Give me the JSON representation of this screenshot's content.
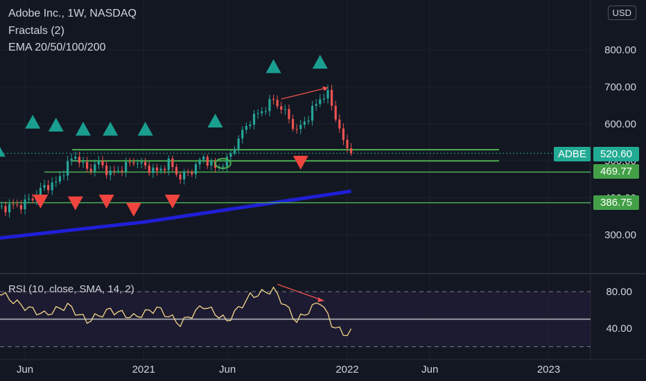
{
  "header": {
    "title": "Adobe Inc., 1W, NASDAQ",
    "indicator1": "Fractals (2)",
    "indicator2": "EMA 20/50/100/200"
  },
  "currency": "USD",
  "rsi_label": "RSI (10, close, SMA, 14, 2)",
  "price_tags": {
    "ticker": "ADBE",
    "last": "520.60",
    "support1": "469.77",
    "support2": "386.75"
  },
  "colors": {
    "background": "#131722",
    "up": "#26a69a",
    "down": "#ef5350",
    "ema": "#1f1fd6",
    "level": "#4caf50",
    "rsi": "#f5d78a",
    "divergence": "#ef5350"
  },
  "chart_data": [
    {
      "type": "candlestick",
      "title": "Adobe Inc., 1W, NASDAQ",
      "x_ticks": [
        "Jun",
        "2021",
        "Jun",
        "2022",
        "Jun",
        "2023"
      ],
      "y_ticks": [
        "300.00",
        "400.00",
        "500.00",
        "600.00",
        "700.00",
        "800.00"
      ],
      "ylim": [
        200,
        880
      ],
      "close_path": [
        [
          "2020-05-25",
          380
        ],
        [
          "2020-06-15",
          400
        ],
        [
          "2020-07-06",
          430
        ],
        [
          "2020-07-27",
          440
        ],
        [
          "2020-08-17",
          490
        ],
        [
          "2020-08-31",
          515
        ],
        [
          "2020-09-21",
          475
        ],
        [
          "2020-10-12",
          495
        ],
        [
          "2020-11-02",
          465
        ],
        [
          "2020-11-23",
          480
        ],
        [
          "2020-12-14",
          500
        ],
        [
          "2021-01-04",
          485
        ],
        [
          "2021-01-25",
          470
        ],
        [
          "2021-02-15",
          495
        ],
        [
          "2021-03-08",
          455
        ],
        [
          "2021-03-29",
          475
        ],
        [
          "2021-04-19",
          510
        ],
        [
          "2021-05-10",
          480
        ],
        [
          "2021-05-31",
          500
        ],
        [
          "2021-06-21",
          560
        ],
        [
          "2021-07-12",
          610
        ],
        [
          "2021-08-02",
          635
        ],
        [
          "2021-08-23",
          665
        ],
        [
          "2021-09-13",
          630
        ],
        [
          "2021-10-04",
          580
        ],
        [
          "2021-10-25",
          620
        ],
        [
          "2021-11-15",
          670
        ],
        [
          "2021-11-29",
          680
        ],
        [
          "2021-12-13",
          620
        ],
        [
          "2021-12-27",
          550
        ],
        [
          "2022-01-10",
          520.6
        ]
      ],
      "horizontal_levels": [
        530,
        500,
        469.77,
        386.75
      ],
      "fractals_up": [
        [
          "2020-04-13",
          530
        ],
        [
          "2020-06-15",
          606
        ],
        [
          "2020-07-27",
          598
        ],
        [
          "2020-09-14",
          587
        ],
        [
          "2020-11-02",
          587
        ],
        [
          "2021-01-04",
          587
        ],
        [
          "2021-05-10",
          609
        ],
        [
          "2021-08-23",
          756
        ],
        [
          "2021-11-15",
          768
        ]
      ],
      "fractals_down": [
        [
          "2020-06-29",
          390
        ],
        [
          "2020-08-31",
          385
        ],
        [
          "2020-10-26",
          390
        ],
        [
          "2020-12-14",
          368
        ],
        [
          "2021-02-22",
          390
        ],
        [
          "2021-10-11",
          495
        ]
      ],
      "ema": [
        [
          "2019-11-11",
          265
        ],
        [
          "2021-01-04",
          335
        ],
        [
          "2022-01-10",
          418
        ]
      ]
    },
    {
      "type": "line",
      "title": "RSI (10, close, SMA, 14, 2)",
      "y_ticks": [
        "40.00",
        "80.00"
      ],
      "levels": [
        80,
        50,
        20
      ],
      "ylim": [
        10,
        100
      ],
      "values": [
        [
          "2019-11-11",
          70
        ],
        [
          "2020-01-13",
          78
        ],
        [
          "2020-03-02",
          63
        ],
        [
          "2020-04-13",
          80
        ],
        [
          "2020-05-25",
          65
        ],
        [
          "2020-07-06",
          55
        ],
        [
          "2020-08-17",
          65
        ],
        [
          "2020-09-21",
          48
        ],
        [
          "2020-11-02",
          60
        ],
        [
          "2020-12-14",
          52
        ],
        [
          "2021-01-25",
          62
        ],
        [
          "2021-03-08",
          45
        ],
        [
          "2021-04-19",
          65
        ],
        [
          "2021-05-31",
          48
        ],
        [
          "2021-07-12",
          75
        ],
        [
          "2021-08-23",
          82
        ],
        [
          "2021-10-04",
          48
        ],
        [
          "2021-11-15",
          70
        ],
        [
          "2021-12-06",
          45
        ],
        [
          "2021-12-27",
          34
        ],
        [
          "2022-01-10",
          36
        ]
      ]
    }
  ]
}
